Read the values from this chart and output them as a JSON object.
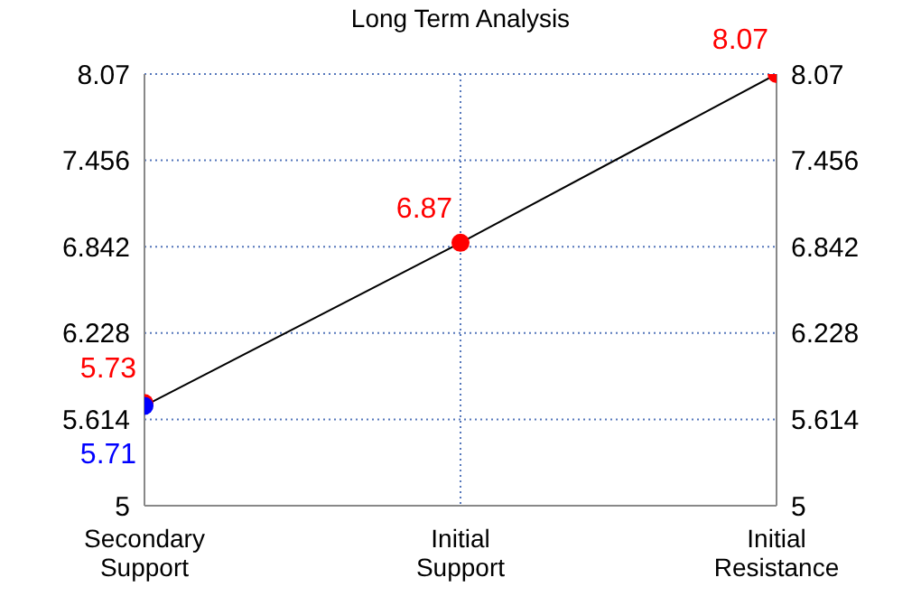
{
  "chart_data": {
    "type": "line",
    "title": "Long Term Analysis",
    "categories": [
      "Secondary Support",
      "Initial Support",
      "Initial Resistance"
    ],
    "series": [
      {
        "color": "#000000",
        "values": [
          5.71,
          6.87,
          8.07
        ],
        "marker": "none"
      },
      {
        "type": "scatter",
        "color": "#ff0000",
        "values": [
          5.73,
          6.87,
          8.07
        ],
        "marker": "circle",
        "value_labels": [
          "5.73",
          "6.87",
          "8.07"
        ]
      },
      {
        "type": "scatter",
        "color": "#0000ff",
        "values": [
          5.71,
          null,
          null
        ],
        "marker": "circle",
        "value_labels": [
          "5.71",
          null,
          null
        ]
      }
    ],
    "ylim": [
      5,
      8.07
    ],
    "yticks": [
      5,
      5.614,
      6.228,
      6.842,
      7.456,
      8.07
    ],
    "y2lim": [
      5,
      8.07
    ],
    "y2ticks": [
      5,
      5.614,
      6.228,
      6.842,
      7.456,
      8.07
    ],
    "grid": true
  }
}
